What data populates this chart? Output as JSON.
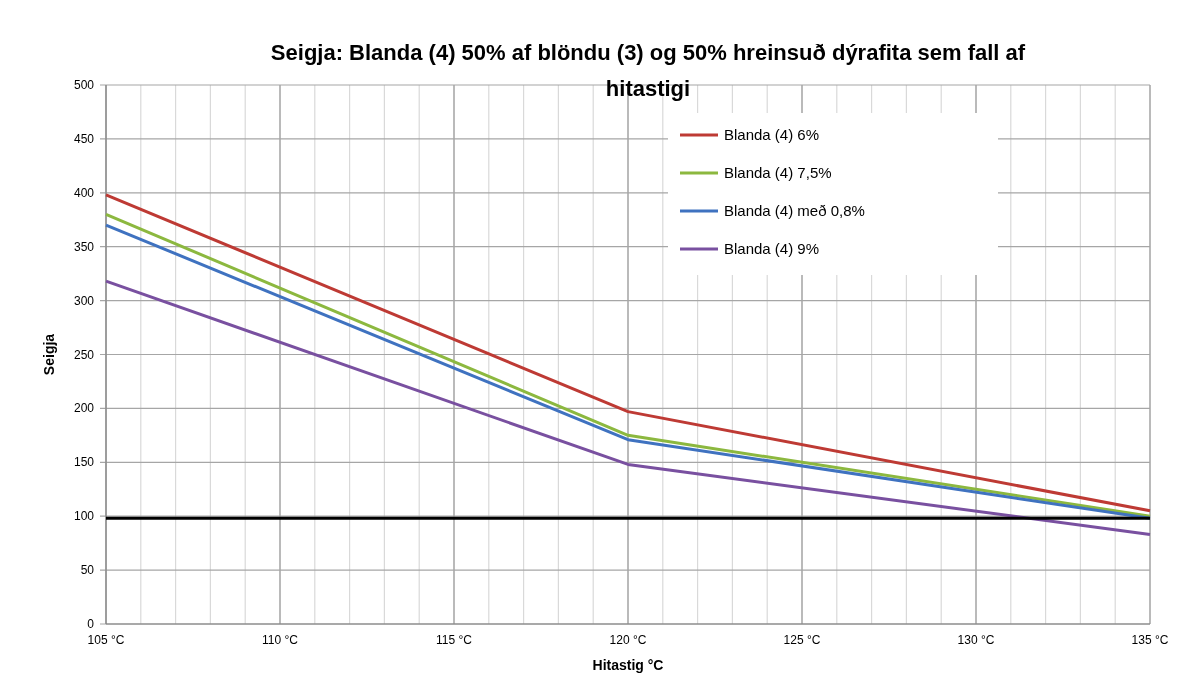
{
  "chart_data": {
    "type": "line",
    "title": "Seigja: Blanda (4) 50% af blöndu (3)  og 50% hreinsuð dýrafita sem fall af hitastigi",
    "xlabel": "Hitastig °C",
    "ylabel": "Seigja",
    "x": [
      105,
      120,
      135
    ],
    "series": [
      {
        "name": "Blanda (4) 6%",
        "color": "#be3a34",
        "values": [
          398,
          197,
          105
        ]
      },
      {
        "name": "Blanda (4) 7,5%",
        "color": "#8cb83f",
        "values": [
          380,
          175,
          100
        ]
      },
      {
        "name": "Blanda (4) með 0,8%",
        "color": "#3f72c0",
        "values": [
          370,
          171,
          98
        ]
      },
      {
        "name": "Blanda (4) 9%",
        "color": "#7950a0",
        "values": [
          318,
          148,
          83
        ]
      }
    ],
    "xlim": [
      105,
      135
    ],
    "xticks": [
      {
        "value": 105,
        "label": "105 °C"
      },
      {
        "value": 106,
        "label": null
      },
      {
        "value": 107,
        "label": null
      },
      {
        "value": 108,
        "label": null
      },
      {
        "value": 109,
        "label": null
      },
      {
        "value": 110,
        "label": "110 °C"
      },
      {
        "value": 111,
        "label": null
      },
      {
        "value": 112,
        "label": null
      },
      {
        "value": 113,
        "label": null
      },
      {
        "value": 114,
        "label": null
      },
      {
        "value": 115,
        "label": "115 °C"
      },
      {
        "value": 116,
        "label": null
      },
      {
        "value": 117,
        "label": null
      },
      {
        "value": 118,
        "label": null
      },
      {
        "value": 119,
        "label": null
      },
      {
        "value": 120,
        "label": "120 °C"
      },
      {
        "value": 121,
        "label": null
      },
      {
        "value": 122,
        "label": null
      },
      {
        "value": 123,
        "label": null
      },
      {
        "value": 124,
        "label": null
      },
      {
        "value": 125,
        "label": "125 °C"
      },
      {
        "value": 126,
        "label": null
      },
      {
        "value": 127,
        "label": null
      },
      {
        "value": 128,
        "label": null
      },
      {
        "value": 129,
        "label": null
      },
      {
        "value": 130,
        "label": "130 °C"
      },
      {
        "value": 131,
        "label": null
      },
      {
        "value": 132,
        "label": null
      },
      {
        "value": 133,
        "label": null
      },
      {
        "value": 134,
        "label": null
      },
      {
        "value": 135,
        "label": "135 °C"
      }
    ],
    "ylim": [
      0,
      500
    ],
    "yticks": [
      0,
      50,
      100,
      150,
      200,
      250,
      300,
      350,
      400,
      450,
      500
    ],
    "grid": true,
    "legend": "top right",
    "marker": "none",
    "line_style": "solid",
    "ref_lines": [
      {
        "axis": "y",
        "value": 98,
        "color": "#000000"
      }
    ]
  }
}
